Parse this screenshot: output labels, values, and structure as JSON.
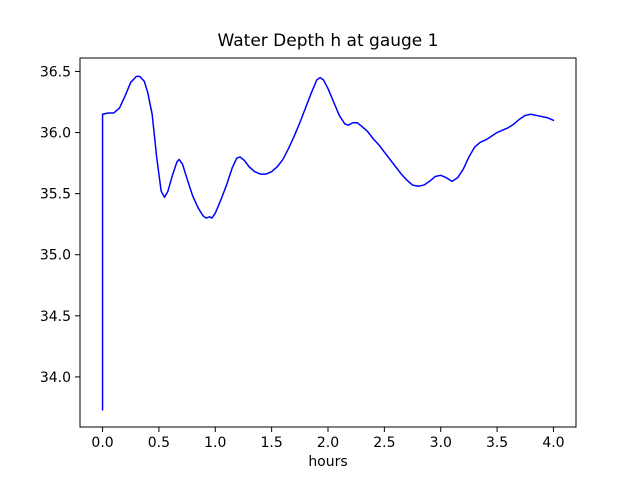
{
  "figure": {
    "background": "#ffffff",
    "frame_color": "#000000"
  },
  "chart_data": {
    "type": "line",
    "title": "Water Depth h at gauge 1",
    "xlabel": "hours",
    "ylabel": "",
    "grid": false,
    "legend": null,
    "xlim": [
      -0.2,
      4.2
    ],
    "ylim": [
      33.59,
      36.61
    ],
    "x_ticks": {
      "values": [
        0.0,
        0.5,
        1.0,
        1.5,
        2.0,
        2.5,
        3.0,
        3.5,
        4.0
      ],
      "labels": [
        "0.0",
        "0.5",
        "1.0",
        "1.5",
        "2.0",
        "2.5",
        "3.0",
        "3.5",
        "4.0"
      ]
    },
    "y_ticks": {
      "values": [
        34.0,
        34.5,
        35.0,
        35.5,
        36.0,
        36.5
      ],
      "labels": [
        "34.0",
        "34.5",
        "35.0",
        "35.5",
        "36.0",
        "36.5"
      ]
    },
    "series": [
      {
        "name": "water depth h at gauge 1",
        "color": "#0000ff",
        "line_width": 1.5,
        "x": [
          0.0,
          0.0,
          0.05,
          0.1,
          0.15,
          0.2,
          0.25,
          0.3,
          0.33,
          0.37,
          0.4,
          0.44,
          0.48,
          0.52,
          0.55,
          0.58,
          0.62,
          0.66,
          0.68,
          0.71,
          0.75,
          0.8,
          0.85,
          0.89,
          0.92,
          0.95,
          0.97,
          1.0,
          1.05,
          1.1,
          1.15,
          1.19,
          1.22,
          1.26,
          1.3,
          1.35,
          1.4,
          1.45,
          1.5,
          1.55,
          1.6,
          1.65,
          1.7,
          1.75,
          1.8,
          1.85,
          1.9,
          1.93,
          1.96,
          2.0,
          2.05,
          2.1,
          2.15,
          2.18,
          2.22,
          2.26,
          2.3,
          2.35,
          2.4,
          2.45,
          2.5,
          2.55,
          2.6,
          2.65,
          2.7,
          2.75,
          2.8,
          2.85,
          2.9,
          2.95,
          3.0,
          3.05,
          3.1,
          3.15,
          3.2,
          3.25,
          3.3,
          3.35,
          3.4,
          3.45,
          3.5,
          3.55,
          3.6,
          3.65,
          3.7,
          3.75,
          3.8,
          3.85,
          3.9,
          3.95,
          4.0
        ],
        "y": [
          33.73,
          36.15,
          36.16,
          36.16,
          36.2,
          36.3,
          36.41,
          36.46,
          36.46,
          36.42,
          36.33,
          36.15,
          35.8,
          35.52,
          35.47,
          35.52,
          35.65,
          35.76,
          35.78,
          35.74,
          35.62,
          35.48,
          35.38,
          35.32,
          35.3,
          35.31,
          35.3,
          35.34,
          35.45,
          35.57,
          35.71,
          35.79,
          35.8,
          35.77,
          35.72,
          35.68,
          35.66,
          35.66,
          35.68,
          35.72,
          35.78,
          35.87,
          35.97,
          36.08,
          36.2,
          36.32,
          36.43,
          36.45,
          36.43,
          36.36,
          36.25,
          36.14,
          36.07,
          36.06,
          36.08,
          36.08,
          36.05,
          36.01,
          35.95,
          35.9,
          35.84,
          35.78,
          35.72,
          35.66,
          35.61,
          35.57,
          35.56,
          35.57,
          35.6,
          35.64,
          35.65,
          35.63,
          35.6,
          35.63,
          35.7,
          35.8,
          35.88,
          35.92,
          35.94,
          35.97,
          36.0,
          36.02,
          36.04,
          36.07,
          36.11,
          36.14,
          36.15,
          36.14,
          36.13,
          36.12,
          36.1
        ]
      }
    ]
  }
}
